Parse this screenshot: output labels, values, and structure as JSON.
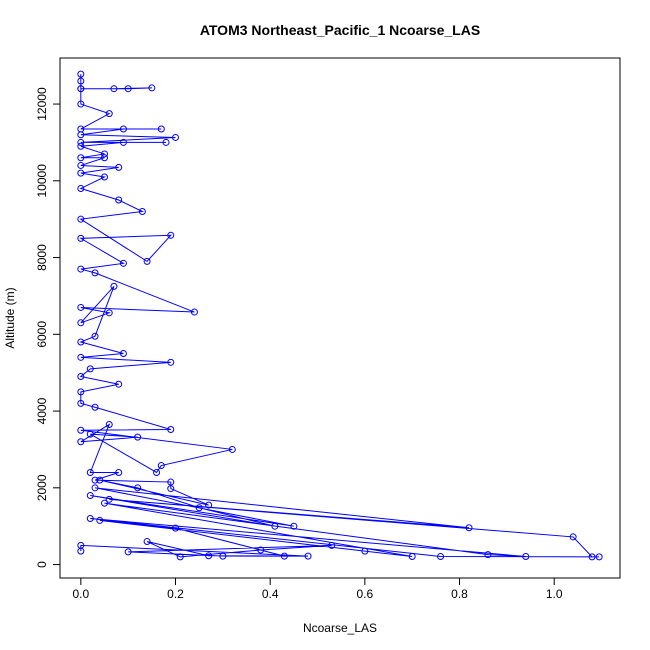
{
  "chart_data": {
    "type": "line",
    "title": "ATOM3 Northeast_Pacific_1 Ncoarse_LAS",
    "x_label": "Ncoarse_LAS",
    "y_label": "Altitude (m)",
    "xlim": [
      -0.044,
      1.139
    ],
    "ylim": [
      -350,
      13200
    ],
    "xticks": [
      {
        "value": 0,
        "label": "0.0"
      },
      {
        "value": 0.2,
        "label": "0.2"
      },
      {
        "value": 0.4,
        "label": "0.4"
      },
      {
        "value": 0.6,
        "label": "0.6"
      },
      {
        "value": 0.8,
        "label": "0.8"
      },
      {
        "value": 1,
        "label": "1.0"
      }
    ],
    "yticks": [
      0,
      2000,
      4000,
      6000,
      8000,
      10000,
      12000
    ],
    "x": [
      0,
      0,
      0,
      0.07,
      0.15,
      0.1,
      0,
      0,
      0.06,
      0,
      0.17,
      0.09,
      0,
      0.2,
      0,
      0.18,
      0.09,
      0,
      0.05,
      0,
      0.05,
      0,
      0.08,
      0,
      0.05,
      0,
      0.08,
      0.13,
      0,
      0.14,
      0.19,
      0,
      0.09,
      0,
      0.03,
      0.24,
      0,
      0.06,
      0,
      0.07,
      0.03,
      0,
      0.09,
      0,
      0.19,
      0.02,
      0,
      0.08,
      0,
      0,
      0.03,
      0.19,
      0,
      0.32,
      0.17,
      0.16,
      0.02,
      0.12,
      0,
      0.06,
      0.02,
      0.08,
      0.03,
      0.19,
      0.19,
      0.27,
      0.04,
      0.12,
      0.25,
      0.41,
      0.02,
      0.45,
      0.03,
      0.82,
      0.06,
      1.04,
      1.08,
      1.095,
      0.76,
      0.02,
      0.94,
      0.86,
      0.05,
      0.7,
      0.6,
      0.04,
      0.2,
      0.43,
      0.3,
      0.1,
      0.53,
      0.38,
      0.21,
      0.14,
      0.27,
      0.48,
      0,
      0
    ],
    "series": [
      {
        "name": "Ncoarse_LAS",
        "color": "#0000ff",
        "values": [
          12780,
          12600,
          12400,
          12400,
          12420,
          12400,
          12400,
          12000,
          11750,
          11350,
          11350,
          11350,
          11200,
          11130,
          11000,
          11000,
          11000,
          10900,
          10700,
          10600,
          10600,
          10400,
          10350,
          10200,
          10100,
          9800,
          9500,
          9200,
          9000,
          7900,
          8580,
          8500,
          7850,
          7700,
          7600,
          6580,
          6700,
          6560,
          6300,
          7250,
          5950,
          5800,
          5500,
          5400,
          5270,
          5100,
          4900,
          4700,
          4500,
          4200,
          4100,
          3520,
          3500,
          3000,
          2580,
          2400,
          3400,
          3320,
          3200,
          3650,
          2400,
          2400,
          2200,
          2150,
          1980,
          1550,
          2200,
          2000,
          1480,
          1000,
          1800,
          1000,
          2000,
          960,
          1700,
          720,
          200,
          200,
          210,
          1200,
          210,
          260,
          1600,
          210,
          350,
          1150,
          950,
          220,
          220,
          330,
          500,
          380,
          200,
          600,
          230,
          220,
          500,
          350
        ]
      }
    ]
  }
}
